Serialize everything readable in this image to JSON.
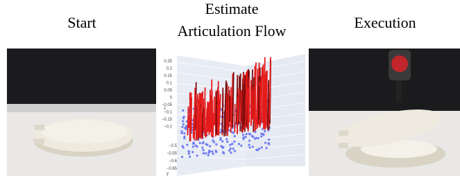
{
  "panels": [
    {
      "title": "Start"
    },
    {
      "title_lines": [
        "Estimate",
        "Articulation Flow"
      ],
      "plot": {
        "z_axis_label": "z",
        "y_axis_label": "y",
        "z_ticks": [
          "0.25",
          "0.2",
          "0.15",
          "0.1",
          "0.05",
          "0",
          "−0.05",
          "−0.1",
          "−0.15",
          "−0.2"
        ],
        "y_ticks": [
          "−0.5",
          "−0.55",
          "−0.6",
          "−0.65"
        ]
      }
    },
    {
      "title": "Execution"
    }
  ]
}
